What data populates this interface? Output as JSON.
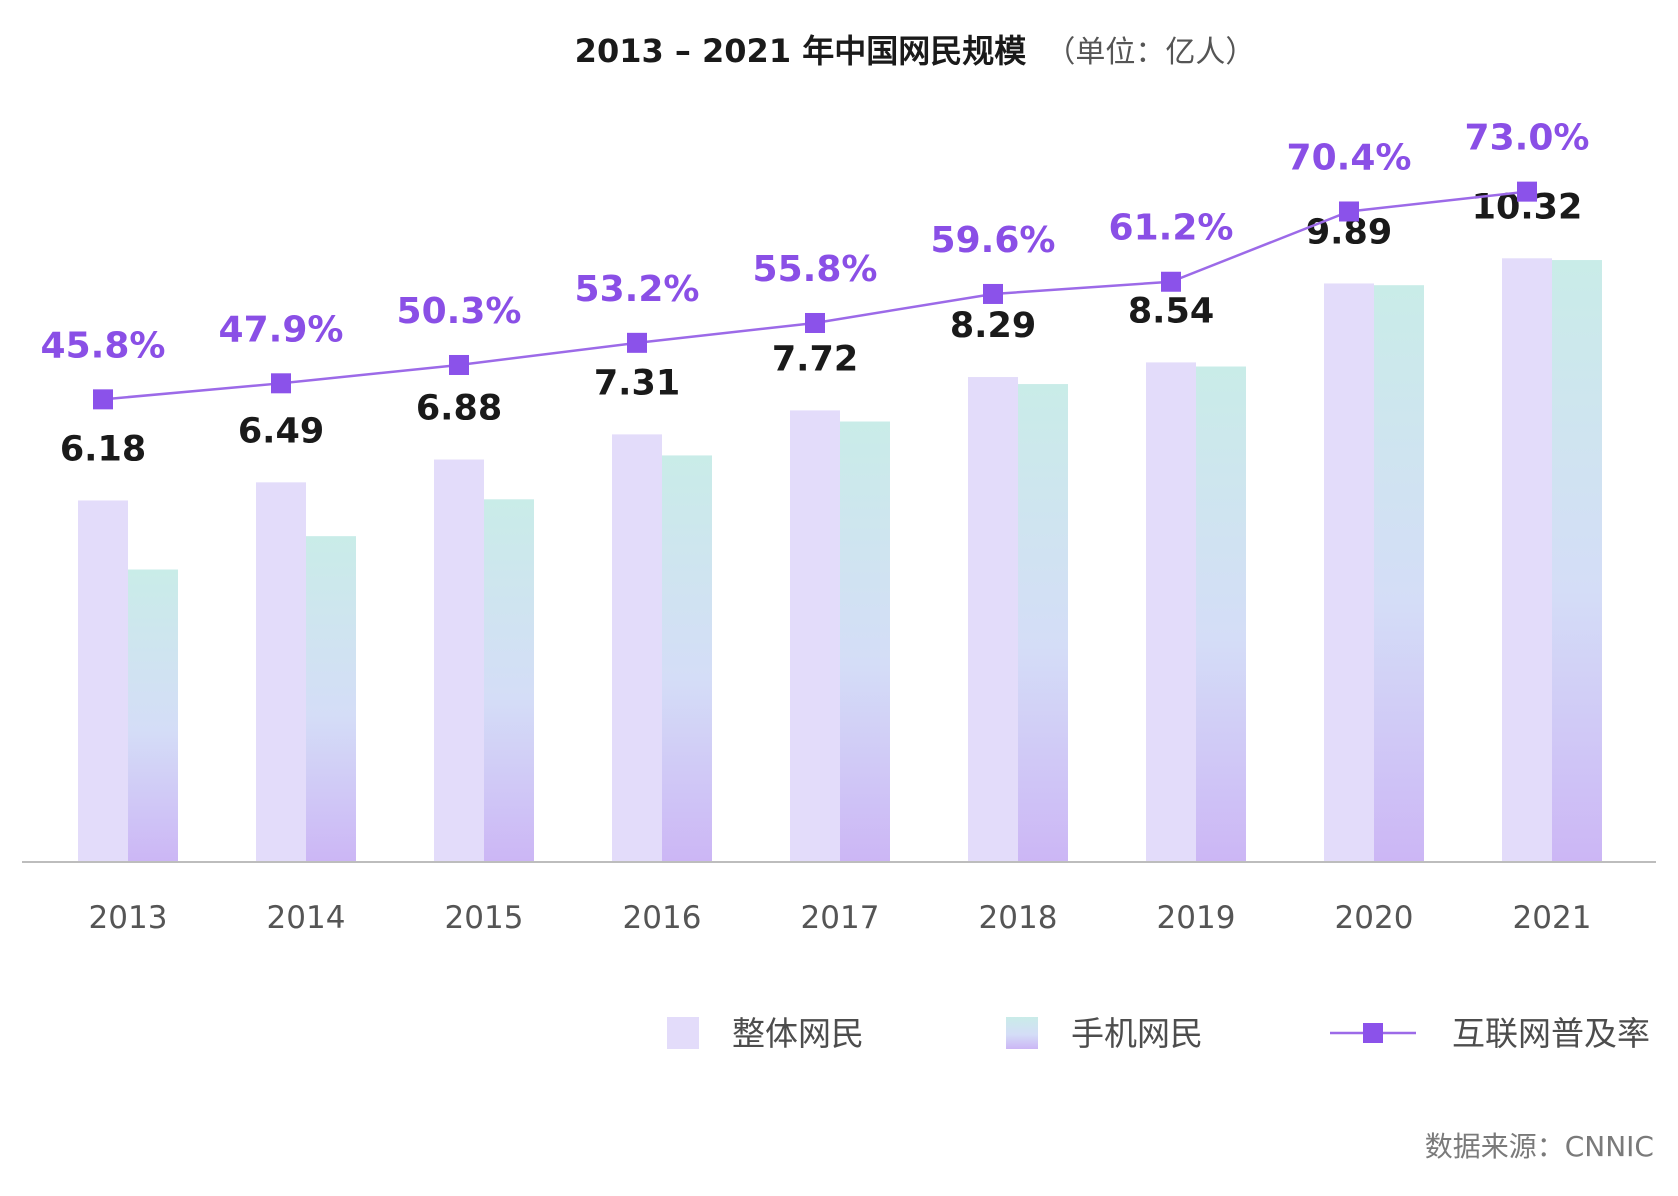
{
  "colors": {
    "total_bar": "#e3dcfa",
    "mobile_top": "#c9ece8",
    "mobile_mid": "#d4ddf7",
    "mobile_bottom": "#ccb6f5",
    "line": "#9c6ae8",
    "marker": "#8b52ea",
    "rate_text": "#8a4fe6",
    "axis": "#bdbdbd"
  },
  "chart_data": {
    "type": "bar",
    "title": "2013 – 2021 年中国网民规模",
    "title_unit": "（单位：亿人）",
    "categories": [
      "2013",
      "2014",
      "2015",
      "2016",
      "2017",
      "2018",
      "2019",
      "2020",
      "2021"
    ],
    "series": [
      {
        "name": "整体网民",
        "type": "bar",
        "values": [
          6.18,
          6.49,
          6.88,
          7.31,
          7.72,
          8.29,
          8.54,
          9.89,
          10.32
        ],
        "labels": [
          "6.18",
          "6.49",
          "6.88",
          "7.31",
          "7.72",
          "8.29",
          "8.54",
          "9.89",
          "10.32"
        ]
      },
      {
        "name": "手机网民",
        "type": "bar",
        "values": [
          5.0,
          5.57,
          6.2,
          6.95,
          7.53,
          8.17,
          8.47,
          9.86,
          10.29
        ]
      },
      {
        "name": "互联网普及率",
        "type": "line",
        "values": [
          45.8,
          47.9,
          50.3,
          53.2,
          55.8,
          59.6,
          61.2,
          70.4,
          73.0
        ],
        "labels": [
          "45.8%",
          "47.9%",
          "50.3%",
          "53.2%",
          "55.8%",
          "59.6%",
          "61.2%",
          "70.4%",
          "73.0%"
        ]
      }
    ],
    "bar_axis_range": [
      0,
      12
    ],
    "line_axis_range": [
      30,
      85
    ],
    "grid": false,
    "legend_position": "bottom-right"
  },
  "source": "数据来源：CNNIC"
}
